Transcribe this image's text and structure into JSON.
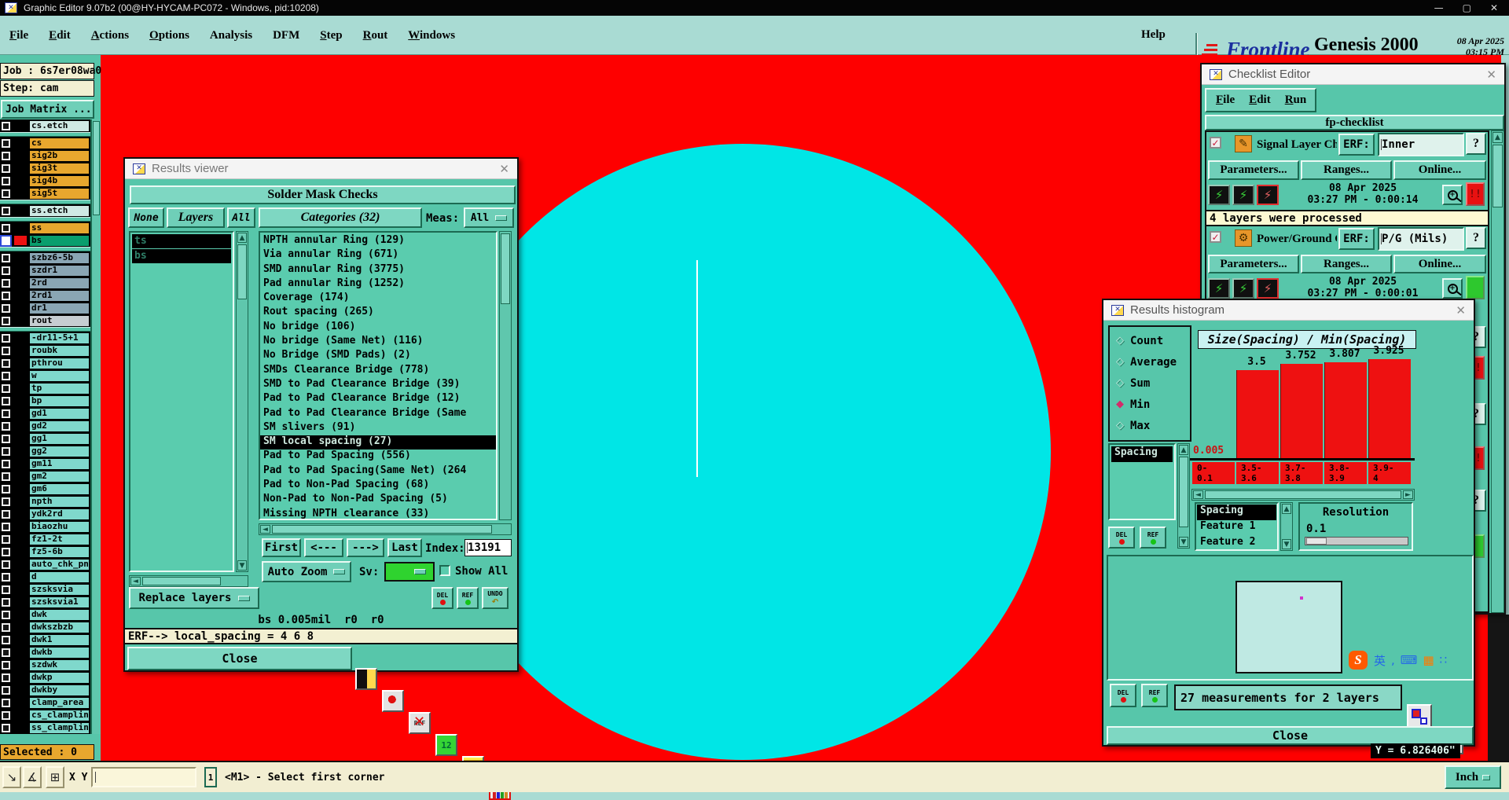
{
  "icons": {
    "window": "✕",
    "close": "✕",
    "minimize": "—",
    "maximize": "▢",
    "up": "▲",
    "down": "▼",
    "left": "◄",
    "right": "►",
    "help": "?",
    "alert": "!!",
    "check": "✓",
    "runner": "⚡",
    "undo_arrow": "↶",
    "diamond": "◆",
    "diamond_empty": "◇",
    "grid_tool": "⊞",
    "arrow_se": "↘",
    "angle_tool": "∡",
    "mag_plus": "+"
  },
  "titlebar": {
    "title": "Graphic Editor 9.07b2 (00@HY-HYCAM-PC072 - Windows, pid:10208)"
  },
  "menubar": {
    "items": [
      {
        "label": "File",
        "u": true
      },
      {
        "label": "Edit",
        "u": true
      },
      {
        "label": "Actions",
        "u": true
      },
      {
        "label": "Options",
        "u": true
      },
      {
        "label": "Analysis",
        "u": false
      },
      {
        "label": "DFM",
        "u": false
      },
      {
        "label": "Step",
        "u": true
      },
      {
        "label": "Rout",
        "u": true
      },
      {
        "label": "Windows",
        "u": true
      }
    ],
    "help": "Help"
  },
  "brand": {
    "logo": "Frontline",
    "product": "Genesis 2000",
    "date": "08 Apr 2025",
    "time": "03:15 PM",
    "subtitle": "Graphic Editor"
  },
  "sidebar": {
    "job": "Job : 6s7er08wa0",
    "step": "Step: cam",
    "job_matrix": "Job Matrix ...",
    "selected_label": "Selected : 0",
    "groups": [
      {
        "layers": [
          {
            "name": "cs.etch",
            "color": "pale"
          }
        ]
      },
      {
        "layers": [
          {
            "name": "cs",
            "color": "gold"
          },
          {
            "name": "sig2b",
            "color": "gold"
          },
          {
            "name": "sig3t",
            "color": "gold"
          },
          {
            "name": "sig4b",
            "color": "gold"
          },
          {
            "name": "sig5t",
            "color": "gold"
          }
        ]
      },
      {
        "layers": [
          {
            "name": "ss.etch",
            "color": "pale"
          }
        ]
      },
      {
        "layers": [
          {
            "name": "ss",
            "color": "gold"
          },
          {
            "name": "bs",
            "color": "bsg",
            "selected": true,
            "swatch": "#ee1111"
          }
        ]
      },
      {
        "layers": [
          {
            "name": "szbz6-5b",
            "color": "slate"
          },
          {
            "name": "szdr1",
            "color": "slate"
          },
          {
            "name": "2rd",
            "color": "slate"
          },
          {
            "name": "2rd1",
            "color": "slate"
          },
          {
            "name": "dr1",
            "color": "slate"
          },
          {
            "name": "rout",
            "color": "lgray"
          }
        ]
      },
      {
        "layers": [
          {
            "name": "-dr11-5+1",
            "color": "cyanr"
          },
          {
            "name": "roubk",
            "color": "cyanr"
          },
          {
            "name": "pthrou",
            "color": "cyanr"
          },
          {
            "name": "w",
            "color": "cyanr"
          },
          {
            "name": "tp",
            "color": "cyanr"
          },
          {
            "name": "bp",
            "color": "cyanr"
          },
          {
            "name": "gd1",
            "color": "cyanr"
          },
          {
            "name": "gd2",
            "color": "cyanr"
          },
          {
            "name": "gg1",
            "color": "cyanr"
          },
          {
            "name": "gg2",
            "color": "cyanr"
          },
          {
            "name": "gm11",
            "color": "cyanr"
          },
          {
            "name": "gm2",
            "color": "cyanr"
          },
          {
            "name": "gm6",
            "color": "cyanr"
          },
          {
            "name": "npth",
            "color": "cyanr"
          },
          {
            "name": "ydk2rd",
            "color": "cyanr"
          },
          {
            "name": "biaozhu",
            "color": "cyanr"
          },
          {
            "name": "fz1-2t",
            "color": "cyanr"
          },
          {
            "name": "fz5-6b",
            "color": "cyanr"
          },
          {
            "name": "auto_chk_pn",
            "color": "cyanr"
          },
          {
            "name": "d",
            "color": "cyanr"
          },
          {
            "name": "szsksvia",
            "color": "cyanr"
          },
          {
            "name": "szsksvia1",
            "color": "cyanr"
          },
          {
            "name": "dwk",
            "color": "cyanr"
          },
          {
            "name": "dwkszbzb",
            "color": "cyanr"
          },
          {
            "name": "dwk1",
            "color": "cyanr"
          },
          {
            "name": "dwkb",
            "color": "cyanr"
          },
          {
            "name": "szdwk",
            "color": "cyanr"
          },
          {
            "name": "dwkp",
            "color": "cyanr"
          },
          {
            "name": "dwkby",
            "color": "cyanr"
          },
          {
            "name": "clamp_area",
            "color": "cyanr"
          },
          {
            "name": "cs_clampline",
            "color": "cyanr"
          },
          {
            "name": "ss_clampline",
            "color": "cyanr"
          }
        ]
      }
    ]
  },
  "results_viewer": {
    "title": "Results viewer",
    "header": "Solder Mask Checks",
    "none_btn": "None",
    "layers_btn": "Layers",
    "all_btn": "All",
    "categories_header": "Categories (32)",
    "meas_label": "Meas:",
    "meas_value": "All",
    "layers": [
      "ts",
      "bs"
    ],
    "categories": [
      {
        "label": "NPTH annular Ring (129)"
      },
      {
        "label": "Via annular Ring (671)"
      },
      {
        "label": "SMD annular Ring (3775)"
      },
      {
        "label": "Pad annular Ring (1252)"
      },
      {
        "label": "Coverage (174)"
      },
      {
        "label": "Rout spacing (265)"
      },
      {
        "label": "No bridge (106)"
      },
      {
        "label": "No bridge (Same Net) (116)"
      },
      {
        "label": "No Bridge (SMD Pads) (2)"
      },
      {
        "label": "SMDs Clearance Bridge (778)"
      },
      {
        "label": "SMD to Pad Clearance Bridge (39)"
      },
      {
        "label": "Pad to Pad Clearance Bridge (12)"
      },
      {
        "label": "Pad to Pad Clearance Bridge (Same"
      },
      {
        "label": "SM slivers (91)"
      },
      {
        "label": "SM local spacing (27)",
        "selected": true
      },
      {
        "label": "Pad to Pad Spacing (556)"
      },
      {
        "label": "Pad to Pad Spacing(Same Net) (264"
      },
      {
        "label": "Pad to Non-Pad Spacing (68)"
      },
      {
        "label": "Non-Pad to Non-Pad Spacing (5)"
      },
      {
        "label": "Missing NPTH clearance (33)"
      }
    ],
    "nav": {
      "first": "First",
      "prev": "<---",
      "next": "--->",
      "last": "Last",
      "index_label": "Index:",
      "index_value": "13191"
    },
    "auto_zoom": "Auto Zoom",
    "sv_label": "Sv:",
    "show_all": "Show All",
    "replace_layers": "Replace layers",
    "del": "DEL",
    "ref": "REF",
    "undo": "UNDO",
    "status_line": "bs 0.005mil  r0  r0",
    "erf_line": "ERF--> local_spacing = 4 6 8",
    "close": "Close"
  },
  "checklist": {
    "title": "Checklist Editor",
    "menu": [
      "File",
      "Edit",
      "Run"
    ],
    "name": "fp-checklist",
    "action_buttons": [
      "Parameters...",
      "Ranges...",
      "Online..."
    ],
    "banner": "4 layers were processed",
    "sections": [
      {
        "icon": "✎",
        "label": "Signal Layer Ch",
        "erf_label": "ERF:",
        "erf_value": "Inner",
        "date": "08 Apr 2025",
        "time": "03:27 PM - 0:00:14",
        "alert": "!!"
      },
      {
        "icon": "⚙",
        "label": "Power/Ground C",
        "erf_label": "ERF:",
        "erf_value": "P/G (Mils)",
        "date": "08 Apr 2025",
        "time": "03:27 PM - 0:00:01",
        "alert": ""
      }
    ]
  },
  "histogram": {
    "title": "Results histogram",
    "stats": [
      "Count",
      "Average",
      "Sum",
      "Min",
      "Max"
    ],
    "selected_stat": "Min",
    "list_item": "Spacing",
    "chart_title": "Size(Spacing) / Min(Spacing)",
    "value_labels": [
      "0.005",
      "3.5",
      "3.752",
      "3.807",
      "3.925"
    ],
    "bins": [
      {
        "l1": "0-",
        "l2": "0.1"
      },
      {
        "l1": "3.5-",
        "l2": "3.6"
      },
      {
        "l1": "3.7-",
        "l2": "3.8"
      },
      {
        "l1": "3.8-",
        "l2": "3.9"
      },
      {
        "l1": "3.9-",
        "l2": "4"
      }
    ],
    "axis_list": [
      "Spacing",
      "Feature 1",
      "Feature 2"
    ],
    "axis_selected": "Spacing",
    "resolution_label": "Resolution",
    "resolution_value": "0.1",
    "del": "DEL",
    "ref": "REF",
    "summary": "27 measurements for 2 layers",
    "close": "Close"
  },
  "chart_data": {
    "type": "bar",
    "title": "Size(Spacing) / Min(Spacing)",
    "statistic": "Min",
    "categories": [
      "0-0.1",
      "3.5-3.6",
      "3.7-3.8",
      "3.8-3.9",
      "3.9-4"
    ],
    "values": [
      0.005,
      3.5,
      3.752,
      3.807,
      3.925
    ],
    "bar_color": "#ee1111",
    "ylim": [
      0,
      4
    ],
    "xlabel": "",
    "ylabel": "",
    "legend": false,
    "grid": false
  },
  "ime": {
    "logo": "S",
    "icons": [
      "英",
      ",",
      "⌨",
      "▦",
      "∷"
    ]
  },
  "y_coord": "Y = 6.826406\"",
  "statusbar": {
    "xy_label": "X Y :",
    "input_value": "",
    "marker": "1",
    "prompt": "<M1> - Select first corner",
    "unit": "Inch"
  }
}
